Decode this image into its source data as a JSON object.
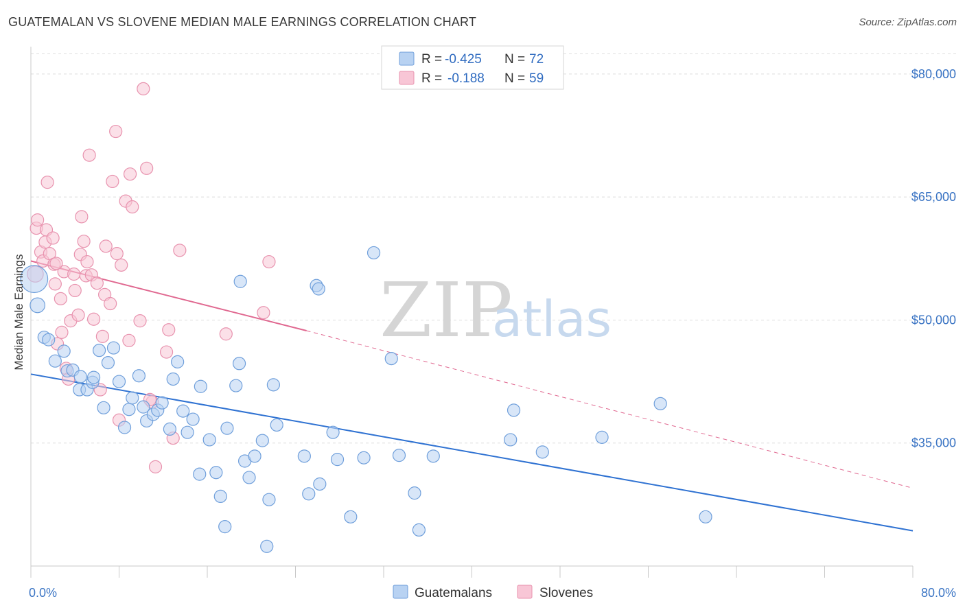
{
  "title": "GUATEMALAN VS SLOVENE MEDIAN MALE EARNINGS CORRELATION CHART",
  "source": "Source: ZipAtlas.com",
  "watermark": {
    "zip": "ZIP",
    "atlas": "atlas"
  },
  "colors": {
    "blue_fill": "#b8d2f2",
    "blue_stroke": "#6f9fdb",
    "blue_line": "#2f72d2",
    "pink_fill": "#f8c6d6",
    "pink_stroke": "#e892ae",
    "pink_line": "#e06890",
    "tick_text": "#3a74c4",
    "grid": "#dcdcdc"
  },
  "legend": {
    "r_label": "R =",
    "n_label": "N =",
    "rows": [
      {
        "series": "Guatemalans",
        "r": "-0.425",
        "n": "72",
        "color": "blue"
      },
      {
        "series": "Slovenes",
        "r": "-0.188",
        "n": "59",
        "color": "pink"
      }
    ]
  },
  "bottom_legend": [
    "Guatemalans",
    "Slovenes"
  ],
  "chart_data": {
    "type": "scatter",
    "title": "GUATEMALAN VS SLOVENE MEDIAN MALE EARNINGS CORRELATION CHART",
    "xlabel": "",
    "ylabel": "Median Male Earnings",
    "xlim": [
      0,
      80
    ],
    "ylim": [
      20000,
      82500
    ],
    "x_tick_labels": [
      {
        "value": 0,
        "label": "0.0%"
      },
      {
        "value": 80,
        "label": "80.0%"
      }
    ],
    "y_ticks": [
      {
        "value": 80000,
        "label": "$80,000"
      },
      {
        "value": 65000,
        "label": "$65,000"
      },
      {
        "value": 50000,
        "label": "$50,000"
      },
      {
        "value": 35000,
        "label": "$35,000"
      }
    ],
    "series": [
      {
        "name": "Guatemalans",
        "color": "blue",
        "r": -0.425,
        "n": 72,
        "trend": {
          "x1": 0,
          "y1": 43400,
          "x2": 80,
          "y2": 24300,
          "dashed_to": null
        },
        "points": [
          [
            0.3,
            55000,
            2.2
          ],
          [
            0.6,
            51800,
            1.2
          ],
          [
            1.2,
            47900,
            1
          ],
          [
            1.6,
            47600,
            1
          ],
          [
            2.2,
            45000,
            1
          ],
          [
            3.0,
            46200,
            1
          ],
          [
            3.3,
            43800,
            1
          ],
          [
            3.8,
            43900,
            1
          ],
          [
            4.5,
            43100,
            1
          ],
          [
            4.4,
            41500,
            1
          ],
          [
            5.1,
            41500,
            1
          ],
          [
            5.6,
            42400,
            1
          ],
          [
            6.2,
            46300,
            1
          ],
          [
            6.6,
            39300,
            1
          ],
          [
            7.0,
            44800,
            1
          ],
          [
            7.5,
            46600,
            1
          ],
          [
            8.0,
            42500,
            1
          ],
          [
            8.5,
            36900,
            1
          ],
          [
            8.9,
            39100,
            1
          ],
          [
            9.2,
            40500,
            1
          ],
          [
            9.8,
            43200,
            1
          ],
          [
            10.2,
            39400,
            1
          ],
          [
            10.5,
            37700,
            1
          ],
          [
            11.1,
            38500,
            1
          ],
          [
            11.5,
            39000,
            1
          ],
          [
            11.9,
            39900,
            1
          ],
          [
            12.6,
            36700,
            1
          ],
          [
            12.9,
            42800,
            1
          ],
          [
            13.3,
            44900,
            1
          ],
          [
            13.8,
            38900,
            1
          ],
          [
            14.2,
            36300,
            1
          ],
          [
            14.7,
            37900,
            1
          ],
          [
            15.4,
            41900,
            1
          ],
          [
            15.3,
            31200,
            1
          ],
          [
            16.2,
            35400,
            1
          ],
          [
            16.8,
            31400,
            1
          ],
          [
            17.2,
            28500,
            1
          ],
          [
            17.6,
            24800,
            1
          ],
          [
            17.8,
            36800,
            1
          ],
          [
            18.6,
            42000,
            1
          ],
          [
            18.9,
            44700,
            1
          ],
          [
            19.0,
            54700,
            1
          ],
          [
            19.4,
            32800,
            1
          ],
          [
            19.8,
            30800,
            1
          ],
          [
            20.3,
            33400,
            1
          ],
          [
            21.0,
            35300,
            1
          ],
          [
            21.4,
            22400,
            1
          ],
          [
            21.6,
            28100,
            1
          ],
          [
            22.0,
            42100,
            1
          ],
          [
            22.3,
            37200,
            1
          ],
          [
            24.8,
            33400,
            1
          ],
          [
            25.2,
            28800,
            1
          ],
          [
            25.9,
            54200,
            1
          ],
          [
            26.1,
            53800,
            1
          ],
          [
            26.2,
            30000,
            1
          ],
          [
            27.4,
            36300,
            1
          ],
          [
            27.8,
            33000,
            1
          ],
          [
            29.0,
            26000,
            1
          ],
          [
            30.2,
            33200,
            1
          ],
          [
            31.1,
            58200,
            1
          ],
          [
            32.7,
            45300,
            1
          ],
          [
            33.4,
            33500,
            1
          ],
          [
            34.8,
            28900,
            1
          ],
          [
            35.2,
            24400,
            1
          ],
          [
            36.5,
            33400,
            1
          ],
          [
            43.5,
            35400,
            1
          ],
          [
            43.8,
            39000,
            1
          ],
          [
            46.4,
            33900,
            1
          ],
          [
            51.8,
            35700,
            1
          ],
          [
            57.1,
            39800,
            1
          ],
          [
            61.2,
            26000,
            1
          ],
          [
            5.7,
            43000,
            1
          ]
        ]
      },
      {
        "name": "Slovenes",
        "color": "pink",
        "r": -0.188,
        "n": 59,
        "trend": {
          "x1": 0,
          "y1": 57200,
          "x2": 25,
          "y2": 48700,
          "dashed_to": [
            80,
            29500
          ]
        },
        "points": [
          [
            0.4,
            55600,
            1.3
          ],
          [
            0.5,
            61200,
            1
          ],
          [
            0.6,
            62200,
            1
          ],
          [
            0.9,
            58300,
            1
          ],
          [
            1.1,
            57200,
            1
          ],
          [
            1.3,
            59500,
            1
          ],
          [
            1.4,
            61000,
            1
          ],
          [
            1.5,
            66800,
            1
          ],
          [
            1.7,
            58100,
            1
          ],
          [
            2.0,
            60000,
            1
          ],
          [
            2.1,
            56800,
            1
          ],
          [
            2.2,
            54400,
            1
          ],
          [
            2.4,
            47100,
            1
          ],
          [
            2.7,
            52600,
            1
          ],
          [
            2.8,
            48500,
            1
          ],
          [
            3.0,
            55900,
            1
          ],
          [
            3.2,
            44100,
            1
          ],
          [
            3.4,
            42800,
            1
          ],
          [
            3.6,
            49900,
            1
          ],
          [
            3.9,
            55600,
            1
          ],
          [
            4.0,
            53600,
            1
          ],
          [
            4.3,
            50600,
            1
          ],
          [
            4.5,
            58000,
            1
          ],
          [
            4.6,
            62600,
            1
          ],
          [
            4.8,
            59600,
            1
          ],
          [
            5.0,
            55400,
            1
          ],
          [
            5.1,
            57100,
            1
          ],
          [
            5.3,
            70100,
            1
          ],
          [
            5.5,
            55500,
            1
          ],
          [
            5.7,
            50100,
            1
          ],
          [
            6.0,
            54500,
            1
          ],
          [
            6.3,
            41500,
            1
          ],
          [
            6.5,
            48000,
            1
          ],
          [
            6.7,
            53100,
            1
          ],
          [
            6.8,
            59000,
            1
          ],
          [
            7.2,
            52000,
            1
          ],
          [
            7.4,
            66900,
            1
          ],
          [
            7.7,
            73000,
            1
          ],
          [
            7.8,
            58100,
            1
          ],
          [
            8.0,
            37800,
            1
          ],
          [
            8.2,
            56700,
            1
          ],
          [
            8.6,
            64500,
            1
          ],
          [
            8.9,
            47500,
            1
          ],
          [
            9.0,
            67800,
            1
          ],
          [
            9.2,
            63800,
            1
          ],
          [
            9.9,
            49900,
            1
          ],
          [
            10.2,
            78200,
            1
          ],
          [
            10.5,
            68500,
            1
          ],
          [
            11.0,
            40000,
            1
          ],
          [
            11.3,
            32100,
            1
          ],
          [
            12.3,
            46100,
            1
          ],
          [
            12.5,
            48800,
            1
          ],
          [
            12.9,
            35600,
            1
          ],
          [
            13.5,
            58500,
            1
          ],
          [
            17.7,
            48300,
            1
          ],
          [
            21.1,
            50900,
            1
          ],
          [
            21.6,
            57100,
            1
          ],
          [
            10.8,
            40300,
            1
          ],
          [
            2.3,
            56900,
            1
          ]
        ]
      }
    ]
  }
}
